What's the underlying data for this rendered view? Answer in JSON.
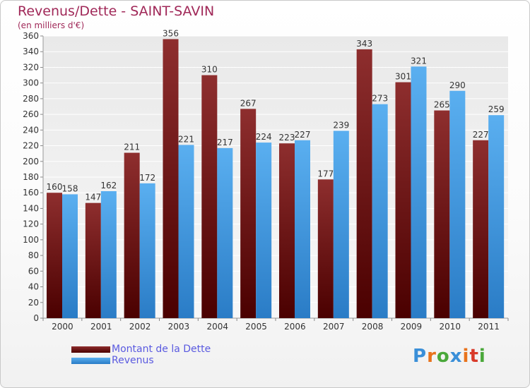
{
  "header": {
    "title": "Revenus/Dette - SAINT-SAVIN",
    "subtitle": "(en milliers d'€)"
  },
  "chart_data": {
    "type": "bar",
    "title": "Revenus/Dette - SAINT-SAVIN",
    "ylabel": "(en milliers d'€)",
    "xlabel": "",
    "categories": [
      "2000",
      "2001",
      "2002",
      "2003",
      "2004",
      "2005",
      "2006",
      "2007",
      "2008",
      "2009",
      "2010",
      "2011"
    ],
    "series": [
      {
        "name": "Montant de la Dette",
        "values": [
          160,
          147,
          211,
          356,
          310,
          267,
          223,
          177,
          343,
          301,
          265,
          227
        ],
        "color": "#7a1a1a"
      },
      {
        "name": "Revenus",
        "values": [
          158,
          162,
          172,
          221,
          217,
          224,
          227,
          239,
          273,
          321,
          290,
          259
        ],
        "color": "#3a9ae6"
      }
    ],
    "ylim": [
      0,
      360
    ],
    "ytick_step": 20,
    "grid": true,
    "legend": "bottom-left",
    "data_labels": true
  },
  "legend": {
    "items": [
      {
        "label": "Montant de la Dette",
        "color": "#6a0e0e"
      },
      {
        "label": "Revenus",
        "color": "#3a9ae6"
      }
    ]
  },
  "logo": {
    "text": "Proxiti",
    "letters": [
      "P",
      "r",
      "o",
      "x",
      "i",
      "t",
      "i"
    ],
    "colors": [
      "#3a8fd8",
      "#e8731c",
      "#4aa83a",
      "#3a8fd8",
      "#e8731c",
      "#d93a2a",
      "#4aa83a"
    ]
  }
}
